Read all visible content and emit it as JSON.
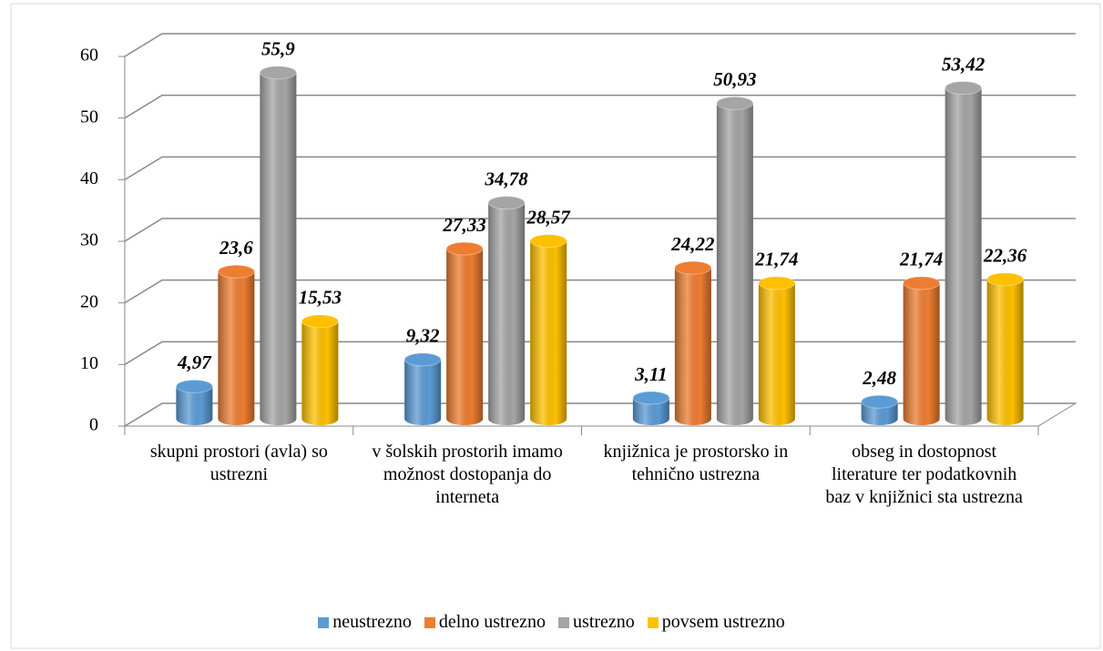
{
  "chart_data": {
    "type": "bar",
    "categories": [
      "skupni prostori (avla) so ustrezni",
      "v šolskih prostorih imamo možnost dostopanja do interneta",
      "knjižnica je prostorsko in tehnično ustrezna",
      "obseg in dostopnost literature ter podatkovnih baz v knjižnici sta ustrezna"
    ],
    "series": [
      {
        "name": "neustrezno",
        "color": "#5b9bd5",
        "values": [
          4.97,
          9.32,
          3.11,
          2.48
        ],
        "value_labels": [
          "4,97",
          "9,32",
          "3,11",
          "2,48"
        ]
      },
      {
        "name": "delno ustrezno",
        "color": "#ed7d31",
        "values": [
          23.6,
          27.33,
          24.22,
          21.74
        ],
        "value_labels": [
          "23,6",
          "27,33",
          "24,22",
          "21,74"
        ]
      },
      {
        "name": "ustrezno",
        "color": "#a5a5a5",
        "values": [
          55.9,
          34.78,
          50.93,
          53.42
        ],
        "value_labels": [
          "55,9",
          "34,78",
          "50,93",
          "53,42"
        ]
      },
      {
        "name": "povsem ustrezno",
        "color": "#ffc000",
        "values": [
          15.53,
          28.57,
          21.74,
          22.36
        ],
        "value_labels": [
          "15,53",
          "28,57",
          "21,74",
          "22,36"
        ]
      }
    ],
    "ylim": [
      0,
      60
    ],
    "yticks": [
      0,
      10,
      20,
      30,
      40,
      50,
      60
    ],
    "grid": true,
    "legend": "bottom"
  }
}
